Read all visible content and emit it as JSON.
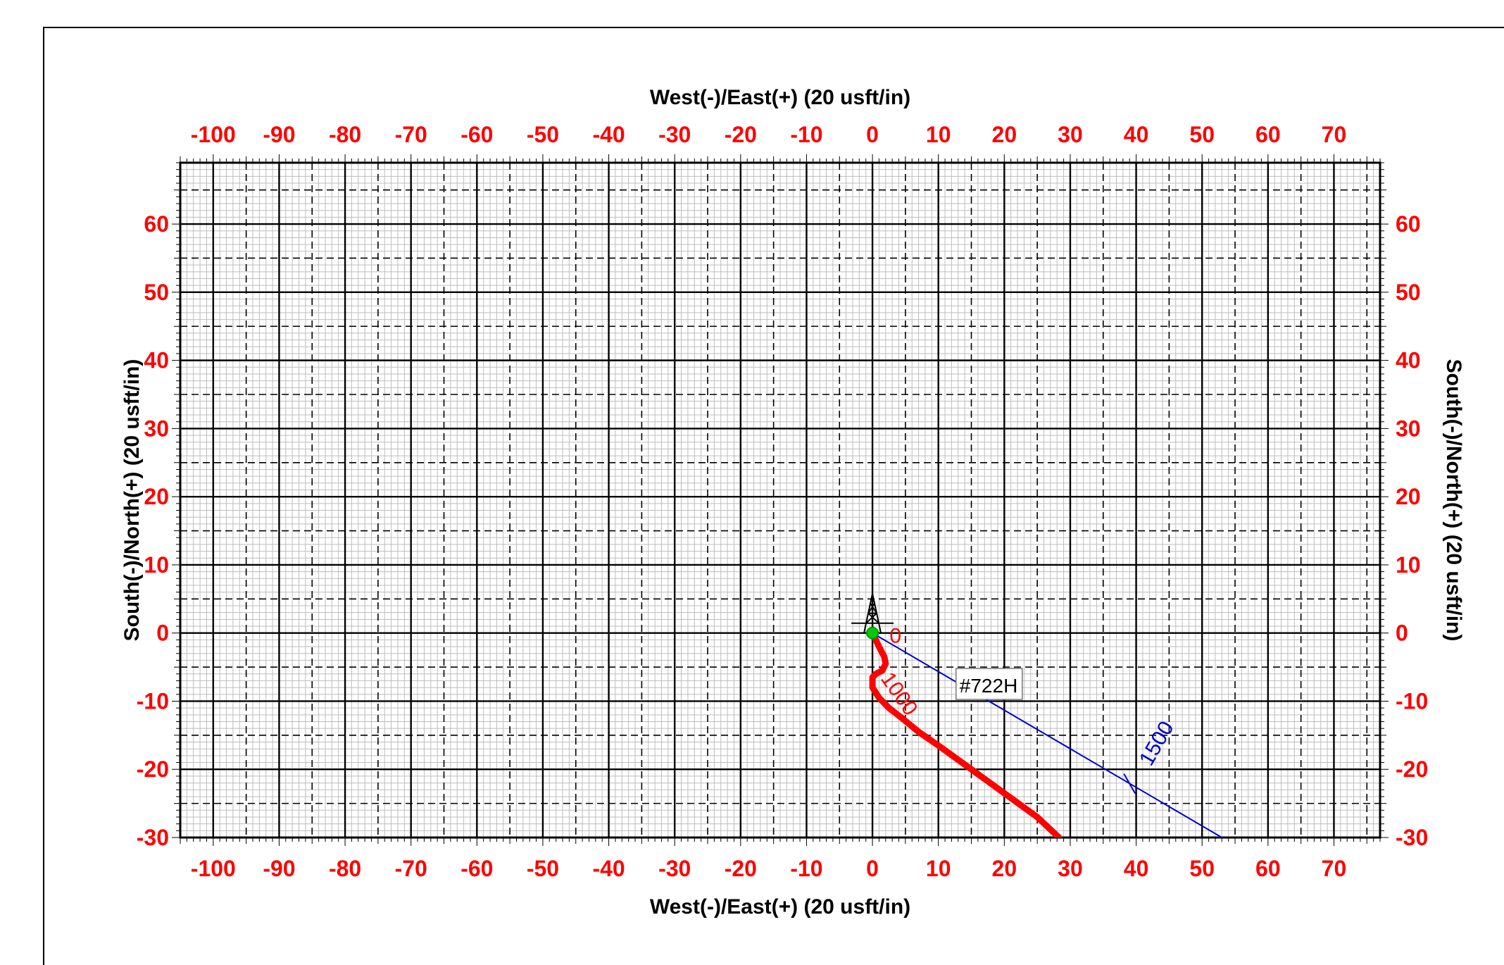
{
  "chart_data": {
    "type": "line",
    "xlabel_top": "West(-)/East(+) (20 usft/in)",
    "xlabel_bottom": "West(-)/East(+) (20 usft/in)",
    "ylabel_left": "South(-)/North(+) (20 usft/in)",
    "ylabel_right": "South(-)/North(+) (20 usft/in)",
    "xlim": [
      -105,
      77
    ],
    "ylim": [
      -30,
      69
    ],
    "x_ticks": [
      "-100",
      "-90",
      "-80",
      "-70",
      "-60",
      "-50",
      "-40",
      "-30",
      "-20",
      "-10",
      "0",
      "10",
      "20",
      "30",
      "40",
      "50",
      "60",
      "70"
    ],
    "y_ticks": [
      "60",
      "50",
      "40",
      "30",
      "20",
      "10",
      "0",
      "-10",
      "-20",
      "-30"
    ],
    "grid": true,
    "series": [
      {
        "color": "#ff0000",
        "x": [
          0,
          1,
          1.8,
          2,
          1.5,
          0.5,
          0,
          0,
          1,
          2.5,
          4.5,
          7,
          10,
          15,
          20,
          25,
          28.3
        ],
        "y": [
          0,
          -2,
          -3.5,
          -4.5,
          -5.5,
          -6,
          -6.5,
          -8,
          -9.5,
          -11,
          -12.5,
          -14.5,
          -16.5,
          -20,
          -23.5,
          -27,
          -30
        ]
      },
      {
        "color": "#0000cc",
        "x": [
          0,
          53
        ],
        "y": [
          0,
          -30
        ]
      }
    ],
    "annotations": [
      {
        "text": "0",
        "x": 2.6,
        "y": -0.3,
        "color": "#ff0000"
      },
      {
        "text": "1000",
        "x": 3.2,
        "y": -9.5,
        "color": "#ff0000"
      },
      {
        "text": "1500",
        "x": 44,
        "y": -16.7,
        "color": "#0000cc"
      },
      {
        "text": "#722H",
        "x": 13,
        "y": -8.3,
        "color": "#000000"
      }
    ]
  }
}
